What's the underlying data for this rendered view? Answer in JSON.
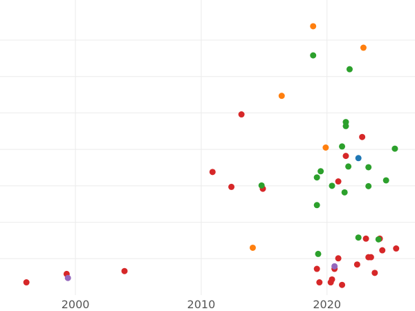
{
  "chart_data": {
    "type": "scatter",
    "title": "",
    "xlabel": "",
    "ylabel": "",
    "xlim": [
      1994,
      2027
    ],
    "ylim": [
      0,
      8.1
    ],
    "x_ticks": [
      2000,
      2010,
      2020
    ],
    "x_tick_labels": [
      "2000",
      "2010",
      "2020"
    ],
    "y_grid": [
      1,
      2,
      3,
      4,
      5,
      6,
      7
    ],
    "grid": true,
    "legend": "none",
    "series": [
      {
        "color": "#d62728",
        "points": [
          [
            1996.1,
            0.35
          ],
          [
            1999.3,
            0.58
          ],
          [
            2003.9,
            0.66
          ],
          [
            2010.9,
            3.38
          ],
          [
            2012.4,
            2.97
          ],
          [
            2013.2,
            4.96
          ],
          [
            2014.9,
            2.92
          ],
          [
            2019.2,
            0.72
          ],
          [
            2019.4,
            0.35
          ],
          [
            2020.3,
            0.35
          ],
          [
            2020.4,
            0.43
          ],
          [
            2020.6,
            0.72
          ],
          [
            2020.9,
            1.01
          ],
          [
            2021.2,
            0.28
          ],
          [
            2020.9,
            3.12
          ],
          [
            2021.5,
            3.82
          ],
          [
            2022.4,
            0.84
          ],
          [
            2022.8,
            4.34
          ],
          [
            2023.1,
            1.55
          ],
          [
            2023.3,
            1.04
          ],
          [
            2023.5,
            1.04
          ],
          [
            2023.8,
            0.61
          ],
          [
            2024.2,
            1.55
          ],
          [
            2024.4,
            1.23
          ],
          [
            2025.5,
            1.28
          ]
        ]
      },
      {
        "color": "#ff7f0e",
        "points": [
          [
            2014.1,
            1.3
          ],
          [
            2016.4,
            5.47
          ],
          [
            2018.9,
            7.38
          ],
          [
            2019.9,
            4.05
          ],
          [
            2022.9,
            6.79
          ]
        ]
      },
      {
        "color": "#2ca02c",
        "points": [
          [
            2014.8,
            3.01
          ],
          [
            2018.9,
            6.58
          ],
          [
            2019.2,
            3.23
          ],
          [
            2019.2,
            2.47
          ],
          [
            2019.3,
            1.13
          ],
          [
            2019.5,
            3.4
          ],
          [
            2020.4,
            3.0
          ],
          [
            2021.2,
            4.08
          ],
          [
            2021.4,
            2.82
          ],
          [
            2021.5,
            4.64
          ],
          [
            2021.5,
            4.75
          ],
          [
            2021.7,
            3.53
          ],
          [
            2021.8,
            6.2
          ],
          [
            2022.5,
            1.58
          ],
          [
            2023.3,
            3.51
          ],
          [
            2023.3,
            2.99
          ],
          [
            2024.1,
            1.53
          ],
          [
            2024.7,
            3.15
          ],
          [
            2025.4,
            4.02
          ]
        ]
      },
      {
        "color": "#1f77b4",
        "points": [
          [
            2022.5,
            3.76
          ]
        ]
      },
      {
        "color": "#9467bd",
        "points": [
          [
            1999.4,
            0.47
          ],
          [
            2020.6,
            0.79
          ]
        ]
      }
    ]
  }
}
